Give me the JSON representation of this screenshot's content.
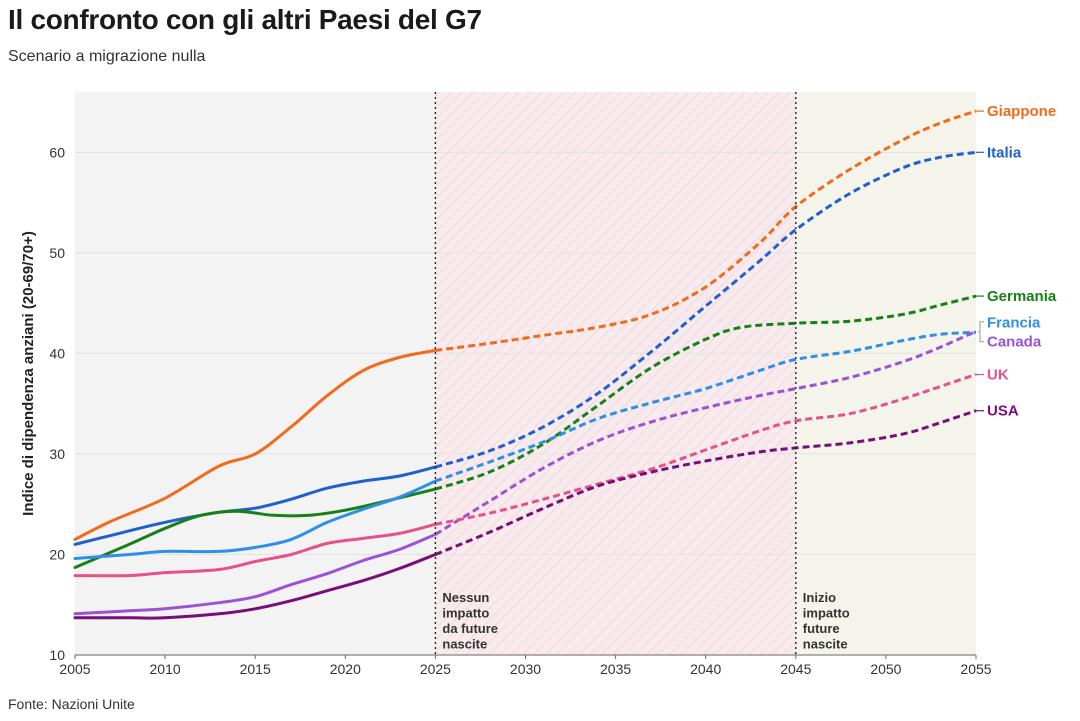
{
  "header": {
    "title": "Il confronto con gli altri Paesi del G7",
    "subtitle": "Scenario a migrazione nulla"
  },
  "footer": {
    "source": "Fonte: Nazioni Unite"
  },
  "chart_data": {
    "type": "line",
    "title": "Il confronto con gli altri Paesi del G7",
    "subtitle": "Scenario a migrazione nulla",
    "xlabel": "",
    "ylabel": "Indice di dipendenza anziani (20-69/70+)",
    "xlim": [
      2005,
      2055
    ],
    "ylim": [
      10,
      66
    ],
    "x_ticks": [
      2005,
      2010,
      2015,
      2020,
      2025,
      2030,
      2035,
      2040,
      2045,
      2050,
      2055
    ],
    "y_ticks": [
      10,
      20,
      30,
      40,
      50,
      60
    ],
    "projection_start": 2025,
    "regions": [
      {
        "from": 2005,
        "to": 2025,
        "kind": "history",
        "fill": "#f3f3f3"
      },
      {
        "from": 2025,
        "to": 2045,
        "kind": "no_birth_impact",
        "fill": "#f8ebee"
      },
      {
        "from": 2045,
        "to": 2055,
        "kind": "birth_impact",
        "fill": "#f4f4ea"
      }
    ],
    "annotations": [
      {
        "x": 2025,
        "lines": [
          "Nessun",
          "impatto",
          "da future",
          "nascite"
        ]
      },
      {
        "x": 2045,
        "lines": [
          "Inizio",
          "impatto",
          "future",
          "nascite"
        ]
      }
    ],
    "series": [
      {
        "name": "Giappone",
        "color": "#f26a1b",
        "x": [
          2005,
          2007,
          2010,
          2013,
          2015,
          2017,
          2019,
          2021,
          2023,
          2025,
          2028,
          2031,
          2034,
          2037,
          2040,
          2043,
          2045,
          2048,
          2051,
          2053,
          2055
        ],
        "y": [
          21.5,
          23.3,
          25.6,
          28.8,
          30.0,
          32.7,
          35.8,
          38.3,
          39.6,
          40.3,
          41.0,
          41.8,
          42.6,
          43.9,
          46.6,
          51.0,
          54.6,
          58.3,
          61.3,
          62.9,
          64.1
        ]
      },
      {
        "name": "Italia",
        "color": "#1f5fd0",
        "x": [
          2005,
          2007,
          2010,
          2013,
          2015,
          2017,
          2019,
          2021,
          2023,
          2025,
          2028,
          2031,
          2034,
          2037,
          2040,
          2043,
          2045,
          2048,
          2051,
          2053,
          2055
        ],
        "y": [
          21.0,
          21.9,
          23.2,
          24.2,
          24.6,
          25.5,
          26.6,
          27.3,
          27.8,
          28.7,
          30.3,
          32.7,
          36.0,
          40.2,
          44.7,
          49.2,
          52.3,
          55.9,
          58.5,
          59.5,
          60.0
        ]
      },
      {
        "name": "Germania",
        "color": "#178016",
        "x": [
          2005,
          2008,
          2010,
          2012,
          2014,
          2016,
          2018,
          2020,
          2022,
          2025,
          2028,
          2031,
          2034,
          2037,
          2040,
          2042,
          2045,
          2048,
          2051,
          2053,
          2055
        ],
        "y": [
          18.7,
          21.0,
          22.6,
          23.9,
          24.3,
          23.9,
          23.9,
          24.4,
          25.2,
          26.5,
          28.2,
          31.0,
          34.8,
          38.6,
          41.4,
          42.6,
          43.0,
          43.2,
          43.9,
          44.8,
          45.7
        ]
      },
      {
        "name": "Francia",
        "color": "#2f8fe8",
        "x": [
          2005,
          2008,
          2010,
          2013,
          2015,
          2017,
          2019,
          2021,
          2023,
          2025,
          2028,
          2031,
          2034,
          2037,
          2040,
          2043,
          2045,
          2048,
          2051,
          2053,
          2055
        ],
        "y": [
          19.6,
          20.0,
          20.3,
          20.3,
          20.7,
          21.5,
          23.2,
          24.5,
          25.7,
          27.3,
          29.2,
          31.2,
          33.5,
          35.1,
          36.5,
          38.3,
          39.4,
          40.2,
          41.3,
          41.9,
          42.1
        ]
      },
      {
        "name": "Canada",
        "color": "#9c52d6",
        "x": [
          2005,
          2008,
          2010,
          2013,
          2015,
          2017,
          2019,
          2021,
          2023,
          2025,
          2028,
          2031,
          2034,
          2037,
          2040,
          2043,
          2045,
          2048,
          2051,
          2053,
          2055
        ],
        "y": [
          14.1,
          14.4,
          14.6,
          15.2,
          15.8,
          17.0,
          18.1,
          19.4,
          20.5,
          22.0,
          25.3,
          28.6,
          31.3,
          33.2,
          34.6,
          35.8,
          36.5,
          37.6,
          39.2,
          40.6,
          42.2
        ]
      },
      {
        "name": "UK",
        "color": "#e8508a",
        "x": [
          2005,
          2008,
          2010,
          2013,
          2015,
          2017,
          2019,
          2021,
          2023,
          2025,
          2028,
          2031,
          2034,
          2037,
          2040,
          2043,
          2045,
          2048,
          2051,
          2053,
          2055
        ],
        "y": [
          17.9,
          17.9,
          18.2,
          18.5,
          19.3,
          20.0,
          21.1,
          21.6,
          22.1,
          23.0,
          24.1,
          25.5,
          27.0,
          28.5,
          30.4,
          32.3,
          33.3,
          34.0,
          35.5,
          36.7,
          37.9
        ]
      },
      {
        "name": "USA",
        "color": "#790d79",
        "x": [
          2005,
          2008,
          2010,
          2013,
          2015,
          2017,
          2019,
          2021,
          2023,
          2025,
          2028,
          2031,
          2034,
          2037,
          2040,
          2043,
          2045,
          2048,
          2051,
          2053,
          2055
        ],
        "y": [
          13.7,
          13.7,
          13.7,
          14.1,
          14.6,
          15.4,
          16.4,
          17.4,
          18.6,
          20.0,
          22.2,
          24.6,
          26.8,
          28.2,
          29.3,
          30.2,
          30.6,
          31.1,
          32.0,
          33.1,
          34.3
        ]
      }
    ],
    "legend_position": "right-end"
  }
}
